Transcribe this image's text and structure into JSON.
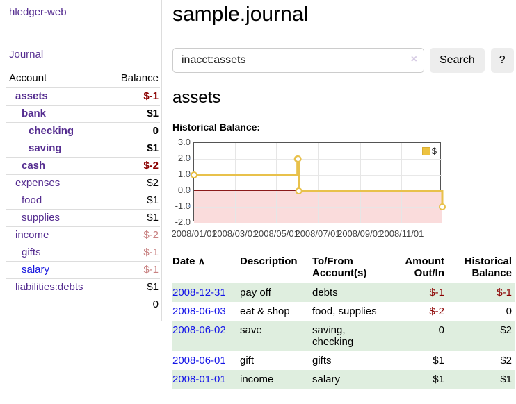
{
  "app": {
    "brand": "hledger-web"
  },
  "sidebar": {
    "journal_link": "Journal",
    "headers": {
      "account": "Account",
      "balance": "Balance"
    },
    "accounts": [
      {
        "name": "assets",
        "balance": "$-1",
        "depth": 1,
        "in_query": true,
        "balance_color": "neg-strong"
      },
      {
        "name": "bank",
        "balance": "$1",
        "depth": 2,
        "in_query": true,
        "balance_color": "normal"
      },
      {
        "name": "checking",
        "balance": "0",
        "depth": 3,
        "in_query": true,
        "balance_color": "normal"
      },
      {
        "name": "saving",
        "balance": "$1",
        "depth": 3,
        "in_query": true,
        "balance_color": "normal"
      },
      {
        "name": "cash",
        "balance": "$-2",
        "depth": 2,
        "in_query": true,
        "balance_color": "neg-strong"
      },
      {
        "name": "expenses",
        "balance": "$2",
        "depth": 1,
        "in_query": false,
        "balance_color": "normal"
      },
      {
        "name": "food",
        "balance": "$1",
        "depth": 2,
        "in_query": false,
        "balance_color": "normal"
      },
      {
        "name": "supplies",
        "balance": "$1",
        "depth": 2,
        "in_query": false,
        "balance_color": "normal"
      },
      {
        "name": "income",
        "balance": "$-2",
        "depth": 1,
        "in_query": false,
        "balance_color": "neg-soft"
      },
      {
        "name": "gifts",
        "balance": "$-1",
        "depth": 2,
        "in_query": false,
        "balance_color": "neg-soft"
      },
      {
        "name": "salary",
        "balance": "$-1",
        "depth": 2,
        "in_query": false,
        "balance_color": "neg-soft",
        "link_color": "blue"
      },
      {
        "name": "liabilities:debts",
        "balance": "$1",
        "depth": 1,
        "in_query": false,
        "balance_color": "normal"
      }
    ],
    "total": "0"
  },
  "header": {
    "title": "sample.journal"
  },
  "search": {
    "value": "inacct:assets",
    "clear_icon": "×",
    "button_label": "Search",
    "help_label": "?"
  },
  "account_page": {
    "title": "assets",
    "chart_label": "Historical Balance:"
  },
  "chart_data": {
    "type": "line",
    "title": "Historical Balance",
    "legend": "$",
    "legend_position": "top-right",
    "step": true,
    "x": [
      "2008-01-01",
      "2008-06-01",
      "2008-06-02",
      "2008-06-03",
      "2008-12-31"
    ],
    "values": [
      1,
      2,
      2,
      0,
      -1
    ],
    "xlim": [
      "2008-01-01",
      "2008-12-31"
    ],
    "ylim": [
      -2,
      3
    ],
    "yticks": [
      3,
      2,
      1,
      0,
      -1,
      -2
    ],
    "ytick_labels": [
      "3.0",
      "2.0",
      "1.0",
      "0.0",
      "-1.0",
      "-2.0"
    ],
    "xtick_labels": [
      "2008/01/01",
      "2008/03/01",
      "2008/05/01",
      "2008/07/01",
      "2008/09/01",
      "2008/11/01"
    ],
    "grid": true,
    "colors": {
      "series": "#E8C14B",
      "marker_fill": "#FFFFFF",
      "negative_region": "#FADCDC",
      "zero_line": "#8B1A1A",
      "grid": "#E6E6E6",
      "border": "#545454",
      "tick_text": "#444444",
      "axis_tick": "#A6BEE0"
    }
  },
  "register": {
    "sort_arrow": "∧",
    "columns": {
      "date": "Date",
      "description": "Description",
      "account": "To/From Account(s)",
      "amount": "Amount Out/In",
      "balance": "Historical Balance"
    },
    "rows": [
      {
        "date": "2008-12-31",
        "description": "pay off",
        "accounts": "debts",
        "amount": "$-1",
        "balance": "$-1",
        "amount_negative": true,
        "balance_negative": true
      },
      {
        "date": "2008-06-03",
        "description": "eat & shop",
        "accounts": "food, supplies",
        "amount": "$-2",
        "balance": "0",
        "amount_negative": true,
        "balance_negative": false
      },
      {
        "date": "2008-06-02",
        "description": "save",
        "accounts": "saving, checking",
        "amount": "0",
        "balance": "$2",
        "amount_negative": false,
        "balance_negative": false
      },
      {
        "date": "2008-06-01",
        "description": "gift",
        "accounts": "gifts",
        "amount": "$1",
        "balance": "$2",
        "amount_negative": false,
        "balance_negative": false
      },
      {
        "date": "2008-01-01",
        "description": "income",
        "accounts": "salary",
        "amount": "$1",
        "balance": "$1",
        "amount_negative": false,
        "balance_negative": false
      }
    ]
  },
  "colors": {
    "link_purple": "#552D90",
    "link_blue": "#1414E8",
    "negative_strong": "#8B0000",
    "negative_soft": "#C88181",
    "row_stripe_green": "#DFEEDF",
    "divider": "#DDDDDD"
  }
}
